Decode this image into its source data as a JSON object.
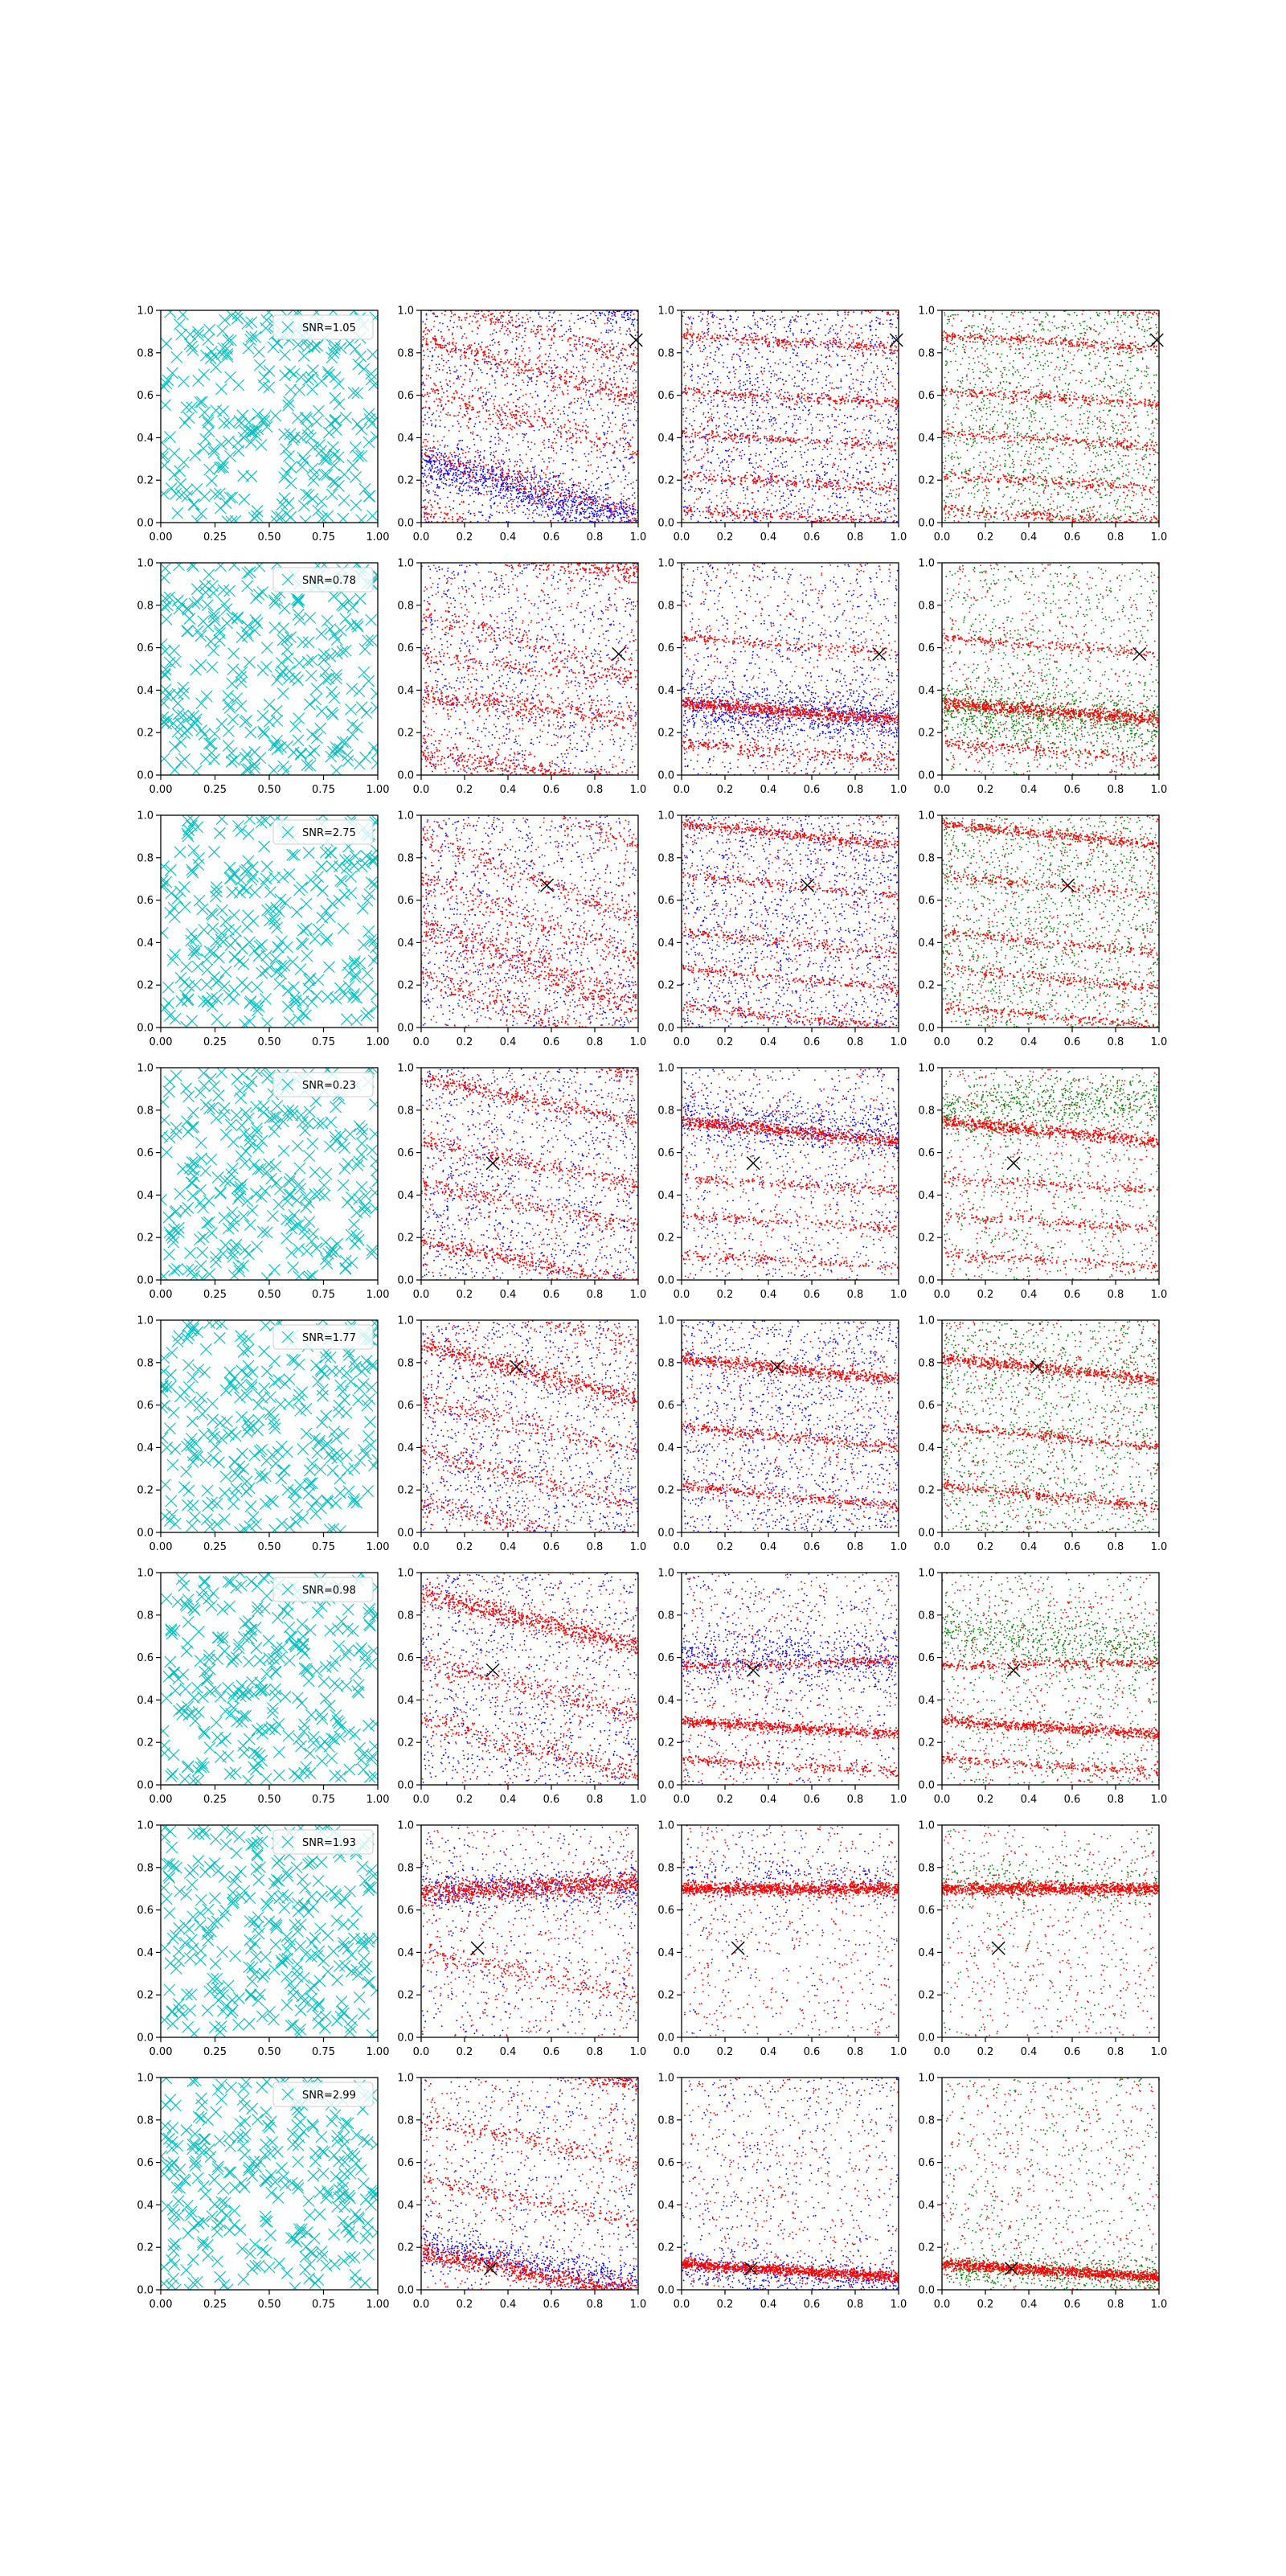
{
  "figure": {
    "layout": {
      "rows": 8,
      "columns": 4
    },
    "column_kinds": [
      "cyan-x-scatter",
      "red-blue-scatter",
      "red-blue-scatter",
      "red-green-scatter"
    ],
    "colors": {
      "cyan": "#00bfbf",
      "red": "#ff0000",
      "blue": "#0000ff",
      "green": "#008000",
      "marker": "#000000",
      "axis": "#000000"
    },
    "icons": {
      "cyan_marker": "x-marker-icon",
      "true_position": "x-marker-icon"
    }
  },
  "chart_data": {
    "type": "scatter",
    "xlim": [
      0,
      1
    ],
    "ylim": [
      0,
      1
    ],
    "xticks_first_column": [
      "0.00",
      "0.25",
      "0.50",
      "0.75",
      "1.00"
    ],
    "xticks_other_columns": [
      "0.0",
      "0.2",
      "0.4",
      "0.6",
      "0.8",
      "1.0"
    ],
    "yticks": [
      "0.0",
      "0.2",
      "0.4",
      "0.6",
      "0.8",
      "1.0"
    ],
    "grid": false,
    "legend_placement": "upper-right",
    "rows": [
      {
        "legend": "SNR=1.05",
        "true_marker": {
          "x": 0.99,
          "y": 0.86
        },
        "panels": [
          {
            "bands": [
              {
                "a": 0.86,
                "b": -0.28,
                "s": 0.03,
                "w": 1.0
              },
              {
                "a": 0.62,
                "b": -0.28,
                "s": 0.04,
                "w": 0.8
              },
              {
                "a": 0.32,
                "b": -0.28,
                "s": 0.04,
                "w": 0.8
              },
              {
                "a": 0.05,
                "b": -0.28,
                "s": 0.03,
                "w": 0.7
              }
            ],
            "blue": {
              "n": 900
            },
            "blue_bands": [
              {
                "a": 0.28,
                "b": -0.28,
                "s": 0.05,
                "w": 1.0
              }
            ]
          },
          {
            "bands": [
              {
                "a": 0.88,
                "b": -0.06,
                "s": 0.012,
                "w": 1.0
              },
              {
                "a": 0.62,
                "b": -0.06,
                "s": 0.012,
                "w": 0.9
              },
              {
                "a": 0.42,
                "b": -0.06,
                "s": 0.012,
                "w": 0.8
              },
              {
                "a": 0.22,
                "b": -0.06,
                "s": 0.012,
                "w": 0.8
              },
              {
                "a": 0.06,
                "b": -0.06,
                "s": 0.012,
                "w": 0.8
              }
            ],
            "blue": {
              "n": 1300
            }
          },
          {
            "bands": [
              {
                "a": 0.88,
                "b": -0.06,
                "s": 0.012,
                "w": 1.0
              },
              {
                "a": 0.62,
                "b": -0.06,
                "s": 0.012,
                "w": 0.9
              },
              {
                "a": 0.42,
                "b": -0.06,
                "s": 0.012,
                "w": 0.8
              },
              {
                "a": 0.22,
                "b": -0.06,
                "s": 0.012,
                "w": 0.8
              },
              {
                "a": 0.06,
                "b": -0.06,
                "s": 0.012,
                "w": 0.8
              }
            ],
            "green": {
              "n": 1300
            }
          }
        ]
      },
      {
        "legend": "SNR=0.78",
        "true_marker": {
          "x": 0.91,
          "y": 0.57
        },
        "panels": [
          {
            "bands": [
              {
                "a": 0.76,
                "b": -0.28,
                "s": 0.03,
                "w": 0.8
              },
              {
                "a": 0.56,
                "b": -0.12,
                "s": 0.02,
                "w": 0.7
              },
              {
                "a": 0.38,
                "b": -0.12,
                "s": 0.03,
                "w": 1.6
              },
              {
                "a": 0.1,
                "b": -0.15,
                "s": 0.03,
                "w": 1.8
              }
            ],
            "blue": {
              "n": 800
            }
          },
          {
            "bands": [
              {
                "a": 0.65,
                "b": -0.08,
                "s": 0.012,
                "w": 0.6
              },
              {
                "a": 0.34,
                "b": -0.08,
                "s": 0.015,
                "w": 2.2
              },
              {
                "a": 0.15,
                "b": -0.08,
                "s": 0.015,
                "w": 0.7
              }
            ],
            "blue": {
              "n": 700
            },
            "blue_bands": [
              {
                "a": 0.32,
                "b": -0.05,
                "s": 0.06,
                "w": 1.5
              }
            ]
          },
          {
            "bands": [
              {
                "a": 0.65,
                "b": -0.08,
                "s": 0.012,
                "w": 0.6
              },
              {
                "a": 0.34,
                "b": -0.08,
                "s": 0.015,
                "w": 2.2
              },
              {
                "a": 0.15,
                "b": -0.08,
                "s": 0.015,
                "w": 0.7
              }
            ],
            "green": {
              "n": 700
            },
            "green_bands": [
              {
                "a": 0.3,
                "b": -0.05,
                "s": 0.07,
                "w": 1.5
              }
            ]
          }
        ]
      },
      {
        "legend": "SNR=2.75",
        "true_marker": {
          "x": 0.58,
          "y": 0.67
        },
        "panels": [
          {
            "bands": [
              {
                "a": 0.9,
                "b": -0.38,
                "s": 0.03,
                "w": 0.8
              },
              {
                "a": 0.7,
                "b": -0.38,
                "s": 0.03,
                "w": 0.8
              },
              {
                "a": 0.48,
                "b": -0.38,
                "s": 0.05,
                "w": 1.8
              },
              {
                "a": 0.25,
                "b": -0.38,
                "s": 0.03,
                "w": 0.8
              }
            ],
            "blue": {
              "n": 900
            }
          },
          {
            "bands": [
              {
                "a": 0.96,
                "b": -0.1,
                "s": 0.012,
                "w": 1.6
              },
              {
                "a": 0.72,
                "b": -0.1,
                "s": 0.012,
                "w": 0.7
              },
              {
                "a": 0.45,
                "b": -0.1,
                "s": 0.012,
                "w": 0.8
              },
              {
                "a": 0.28,
                "b": -0.1,
                "s": 0.012,
                "w": 0.8
              },
              {
                "a": 0.1,
                "b": -0.1,
                "s": 0.012,
                "w": 0.8
              }
            ],
            "blue": {
              "n": 1300
            }
          },
          {
            "bands": [
              {
                "a": 0.96,
                "b": -0.1,
                "s": 0.012,
                "w": 1.6
              },
              {
                "a": 0.72,
                "b": -0.1,
                "s": 0.012,
                "w": 0.7
              },
              {
                "a": 0.45,
                "b": -0.1,
                "s": 0.012,
                "w": 0.8
              },
              {
                "a": 0.28,
                "b": -0.1,
                "s": 0.012,
                "w": 0.8
              },
              {
                "a": 0.1,
                "b": -0.1,
                "s": 0.012,
                "w": 0.8
              }
            ],
            "green": {
              "n": 1300
            }
          }
        ]
      },
      {
        "legend": "SNR=0.23",
        "true_marker": {
          "x": 0.33,
          "y": 0.55
        },
        "panels": [
          {
            "bands": [
              {
                "a": 0.95,
                "b": -0.2,
                "s": 0.02,
                "w": 0.9
              },
              {
                "a": 0.65,
                "b": -0.2,
                "s": 0.02,
                "w": 0.7
              },
              {
                "a": 0.45,
                "b": -0.2,
                "s": 0.02,
                "w": 0.7
              },
              {
                "a": 0.18,
                "b": -0.2,
                "s": 0.02,
                "w": 1.0
              }
            ],
            "blue": {
              "n": 1000
            }
          },
          {
            "bands": [
              {
                "a": 0.75,
                "b": -0.1,
                "s": 0.015,
                "w": 2.2
              },
              {
                "a": 0.48,
                "b": -0.06,
                "s": 0.012,
                "w": 0.6
              },
              {
                "a": 0.3,
                "b": -0.06,
                "s": 0.012,
                "w": 0.6
              },
              {
                "a": 0.12,
                "b": -0.06,
                "s": 0.012,
                "w": 0.6
              }
            ],
            "blue": {
              "n": 500
            },
            "blue_bands": [
              {
                "a": 0.75,
                "b": -0.05,
                "s": 0.06,
                "w": 1.8
              }
            ]
          },
          {
            "bands": [
              {
                "a": 0.75,
                "b": -0.1,
                "s": 0.015,
                "w": 2.2
              },
              {
                "a": 0.48,
                "b": -0.06,
                "s": 0.012,
                "w": 0.6
              },
              {
                "a": 0.3,
                "b": -0.06,
                "s": 0.012,
                "w": 0.6
              },
              {
                "a": 0.12,
                "b": -0.06,
                "s": 0.012,
                "w": 0.6
              }
            ],
            "green": {
              "n": 500
            },
            "green_bands": [
              {
                "a": 0.8,
                "b": 0.05,
                "s": 0.06,
                "w": 1.2
              }
            ]
          }
        ]
      },
      {
        "legend": "SNR=1.77",
        "true_marker": {
          "x": 0.44,
          "y": 0.78
        },
        "panels": [
          {
            "bands": [
              {
                "a": 0.88,
                "b": -0.25,
                "s": 0.025,
                "w": 2.0
              },
              {
                "a": 0.62,
                "b": -0.25,
                "s": 0.025,
                "w": 0.8
              },
              {
                "a": 0.38,
                "b": -0.25,
                "s": 0.025,
                "w": 0.8
              },
              {
                "a": 0.14,
                "b": -0.25,
                "s": 0.025,
                "w": 0.8
              }
            ],
            "blue": {
              "n": 1000
            }
          },
          {
            "bands": [
              {
                "a": 0.82,
                "b": -0.1,
                "s": 0.015,
                "w": 1.6
              },
              {
                "a": 0.5,
                "b": -0.1,
                "s": 0.012,
                "w": 0.8
              },
              {
                "a": 0.22,
                "b": -0.1,
                "s": 0.012,
                "w": 0.8
              }
            ],
            "blue": {
              "n": 1200
            }
          },
          {
            "bands": [
              {
                "a": 0.82,
                "b": -0.1,
                "s": 0.015,
                "w": 1.6
              },
              {
                "a": 0.5,
                "b": -0.1,
                "s": 0.012,
                "w": 0.8
              },
              {
                "a": 0.22,
                "b": -0.1,
                "s": 0.012,
                "w": 0.8
              }
            ],
            "green": {
              "n": 1200
            }
          }
        ]
      },
      {
        "legend": "SNR=0.98",
        "true_marker": {
          "x": 0.33,
          "y": 0.54
        },
        "panels": [
          {
            "bands": [
              {
                "a": 0.9,
                "b": -0.25,
                "s": 0.025,
                "w": 1.8
              },
              {
                "a": 0.58,
                "b": -0.25,
                "s": 0.025,
                "w": 0.7
              },
              {
                "a": 0.3,
                "b": -0.25,
                "s": 0.025,
                "w": 0.7
              }
            ],
            "blue": {
              "n": 900
            }
          },
          {
            "bands": [
              {
                "a": 0.56,
                "b": 0.02,
                "s": 0.012,
                "w": 0.8
              },
              {
                "a": 0.3,
                "b": -0.06,
                "s": 0.012,
                "w": 1.8
              },
              {
                "a": 0.12,
                "b": -0.06,
                "s": 0.012,
                "w": 0.7
              }
            ],
            "blue": {
              "n": 500
            },
            "blue_bands": [
              {
                "a": 0.62,
                "b": -0.05,
                "s": 0.07,
                "w": 1.5
              }
            ]
          },
          {
            "bands": [
              {
                "a": 0.56,
                "b": 0.02,
                "s": 0.012,
                "w": 0.8
              },
              {
                "a": 0.3,
                "b": -0.06,
                "s": 0.012,
                "w": 1.8
              },
              {
                "a": 0.12,
                "b": -0.06,
                "s": 0.012,
                "w": 0.7
              }
            ],
            "green": {
              "n": 500
            },
            "green_bands": [
              {
                "a": 0.72,
                "b": -0.08,
                "s": 0.07,
                "w": 1.5
              }
            ]
          }
        ]
      },
      {
        "legend": "SNR=1.93",
        "true_marker": {
          "x": 0.26,
          "y": 0.42
        },
        "panels": [
          {
            "bands": [
              {
                "a": 0.68,
                "b": 0.05,
                "s": 0.025,
                "w": 2.2
              },
              {
                "a": 0.4,
                "b": -0.2,
                "s": 0.025,
                "w": 0.5
              }
            ],
            "blue": {
              "n": 400
            },
            "blue_bands": [
              {
                "a": 0.7,
                "b": 0.0,
                "s": 0.05,
                "w": 1.0
              }
            ]
          },
          {
            "bands": [
              {
                "a": 0.7,
                "b": 0.0,
                "s": 0.015,
                "w": 1.8
              }
            ],
            "blue": {
              "n": 200
            },
            "blue_bands": [
              {
                "a": 0.78,
                "b": -0.05,
                "s": 0.06,
                "w": 2.0
              }
            ]
          },
          {
            "bands": [
              {
                "a": 0.7,
                "b": 0.0,
                "s": 0.015,
                "w": 1.8
              }
            ],
            "green": {
              "n": 200
            },
            "green_bands": [
              {
                "a": 0.74,
                "b": -0.05,
                "s": 0.06,
                "w": 2.0
              }
            ]
          }
        ]
      },
      {
        "legend": "SNR=2.99",
        "true_marker": {
          "x": 0.32,
          "y": 0.1
        },
        "panels": [
          {
            "bands": [
              {
                "a": 0.8,
                "b": -0.2,
                "s": 0.02,
                "w": 0.5
              },
              {
                "a": 0.52,
                "b": -0.2,
                "s": 0.02,
                "w": 0.5
              },
              {
                "a": 0.18,
                "b": -0.2,
                "s": 0.025,
                "w": 2.0
              }
            ],
            "blue": {
              "n": 500
            },
            "blue_bands": [
              {
                "a": 0.22,
                "b": -0.2,
                "s": 0.04,
                "w": 1.5
              }
            ]
          },
          {
            "bands": [
              {
                "a": 0.12,
                "b": -0.06,
                "s": 0.012,
                "w": 1.0
              }
            ],
            "blue": {
              "n": 400
            },
            "blue_bands": [
              {
                "a": 0.1,
                "b": -0.05,
                "s": 0.04,
                "w": 2.0
              }
            ]
          },
          {
            "bands": [
              {
                "a": 0.12,
                "b": -0.06,
                "s": 0.012,
                "w": 1.0
              }
            ],
            "green": {
              "n": 400
            },
            "green_bands": [
              {
                "a": 0.1,
                "b": -0.05,
                "s": 0.04,
                "w": 2.0
              }
            ]
          }
        ]
      }
    ]
  }
}
